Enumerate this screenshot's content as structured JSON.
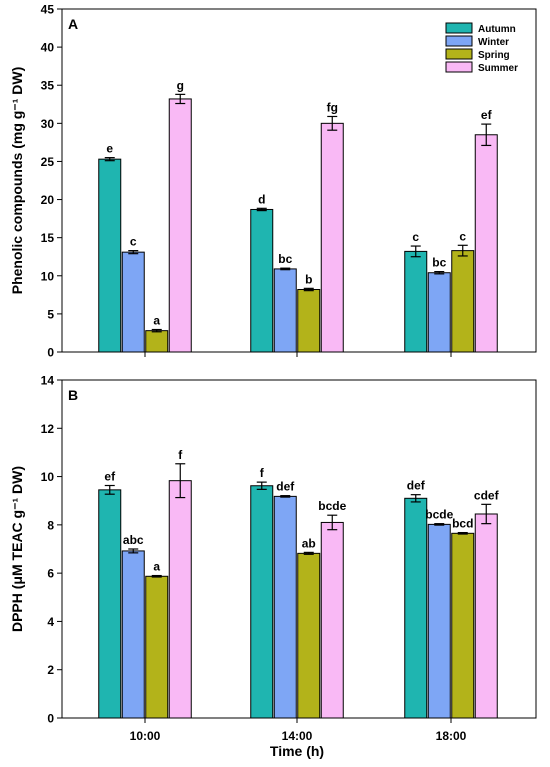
{
  "colors": {
    "Autumn": "#1fb5b0",
    "Winter": "#7ea6f5",
    "Spring": "#b3b31a",
    "Summer": "#f9b9f5"
  },
  "xlabel": "Time (h)",
  "chart_data": [
    {
      "type": "bar",
      "panel_label": "A",
      "ylabel": "Phenolic compounds (mg g⁻¹ DW)",
      "ylim": [
        0,
        45
      ],
      "yticks": [
        0,
        5,
        10,
        15,
        20,
        25,
        30,
        35,
        40,
        45
      ],
      "categories": [
        "10:00",
        "14:00",
        "18:00"
      ],
      "legend": {
        "position": "top-right",
        "entries": [
          "Autumn",
          "Winter",
          "Spring",
          "Summer"
        ]
      },
      "series": [
        {
          "name": "Autumn",
          "values": [
            25.3,
            18.7,
            13.2
          ],
          "errors": [
            0.2,
            0.15,
            0.7
          ],
          "letters": [
            "e",
            "d",
            "c"
          ]
        },
        {
          "name": "Winter",
          "values": [
            13.1,
            10.9,
            10.4
          ],
          "errors": [
            0.2,
            0.1,
            0.15
          ],
          "letters": [
            "c",
            "bc",
            "bc"
          ]
        },
        {
          "name": "Spring",
          "values": [
            2.8,
            8.2,
            13.3
          ],
          "errors": [
            0.15,
            0.15,
            0.7
          ],
          "letters": [
            "a",
            "b",
            "c"
          ]
        },
        {
          "name": "Summer",
          "values": [
            33.2,
            30.0,
            28.5
          ],
          "errors": [
            0.6,
            0.9,
            1.4
          ],
          "letters": [
            "g",
            "fg",
            "ef"
          ]
        }
      ]
    },
    {
      "type": "bar",
      "panel_label": "B",
      "ylabel": "DPPH (μM TEAC g⁻¹ DW)",
      "ylim": [
        0,
        14
      ],
      "yticks": [
        0,
        2,
        4,
        6,
        8,
        10,
        12,
        14
      ],
      "categories": [
        "10:00",
        "14:00",
        "18:00"
      ],
      "series": [
        {
          "name": "Autumn",
          "values": [
            9.45,
            9.62,
            9.1
          ],
          "errors": [
            0.18,
            0.15,
            0.15
          ],
          "letters": [
            "ef",
            "f",
            "def"
          ]
        },
        {
          "name": "Winter",
          "values": [
            6.92,
            9.18,
            8.02
          ],
          "errors": [
            0.08,
            0.03,
            0.03
          ],
          "letters": [
            "abc",
            "def",
            "bcde"
          ]
        },
        {
          "name": "Spring",
          "values": [
            5.87,
            6.82,
            7.65
          ],
          "errors": [
            0.03,
            0.04,
            0.03
          ],
          "letters": [
            "a",
            "ab",
            "bcd"
          ]
        },
        {
          "name": "Summer",
          "values": [
            9.83,
            8.1,
            8.45
          ],
          "errors": [
            0.7,
            0.3,
            0.4
          ],
          "letters": [
            "f",
            "bcde",
            "cdef"
          ]
        }
      ]
    }
  ]
}
